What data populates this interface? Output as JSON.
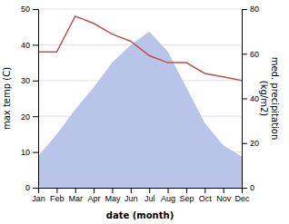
{
  "chart_data": {
    "type": "line",
    "xlabel": "date (month)",
    "ylabel": "max temp (C)",
    "y2label": "med. precipitation\n(kg/m2)",
    "categories": [
      "Jan",
      "Feb",
      "Mar",
      "Apr",
      "May",
      "Jun",
      "Jul",
      "Aug",
      "Sep",
      "Oct",
      "Nov",
      "Dec"
    ],
    "series": [
      {
        "type": "area",
        "axis": "y2",
        "color": "#b8c4e8",
        "values": [
          14,
          24,
          35,
          45,
          56,
          64,
          70,
          61,
          45,
          29,
          19,
          14
        ]
      },
      {
        "type": "line",
        "color": "#c0504d",
        "values": [
          38,
          38,
          48,
          46,
          43,
          41,
          37,
          35,
          35,
          32,
          31,
          30
        ]
      }
    ],
    "ylim": [
      0,
      50
    ],
    "yticks": [
      0,
      10,
      20,
      30,
      40,
      50
    ],
    "y2lim": [
      0,
      80
    ],
    "y2ticks": [
      0,
      20,
      40,
      60,
      80
    ],
    "grid": true
  }
}
